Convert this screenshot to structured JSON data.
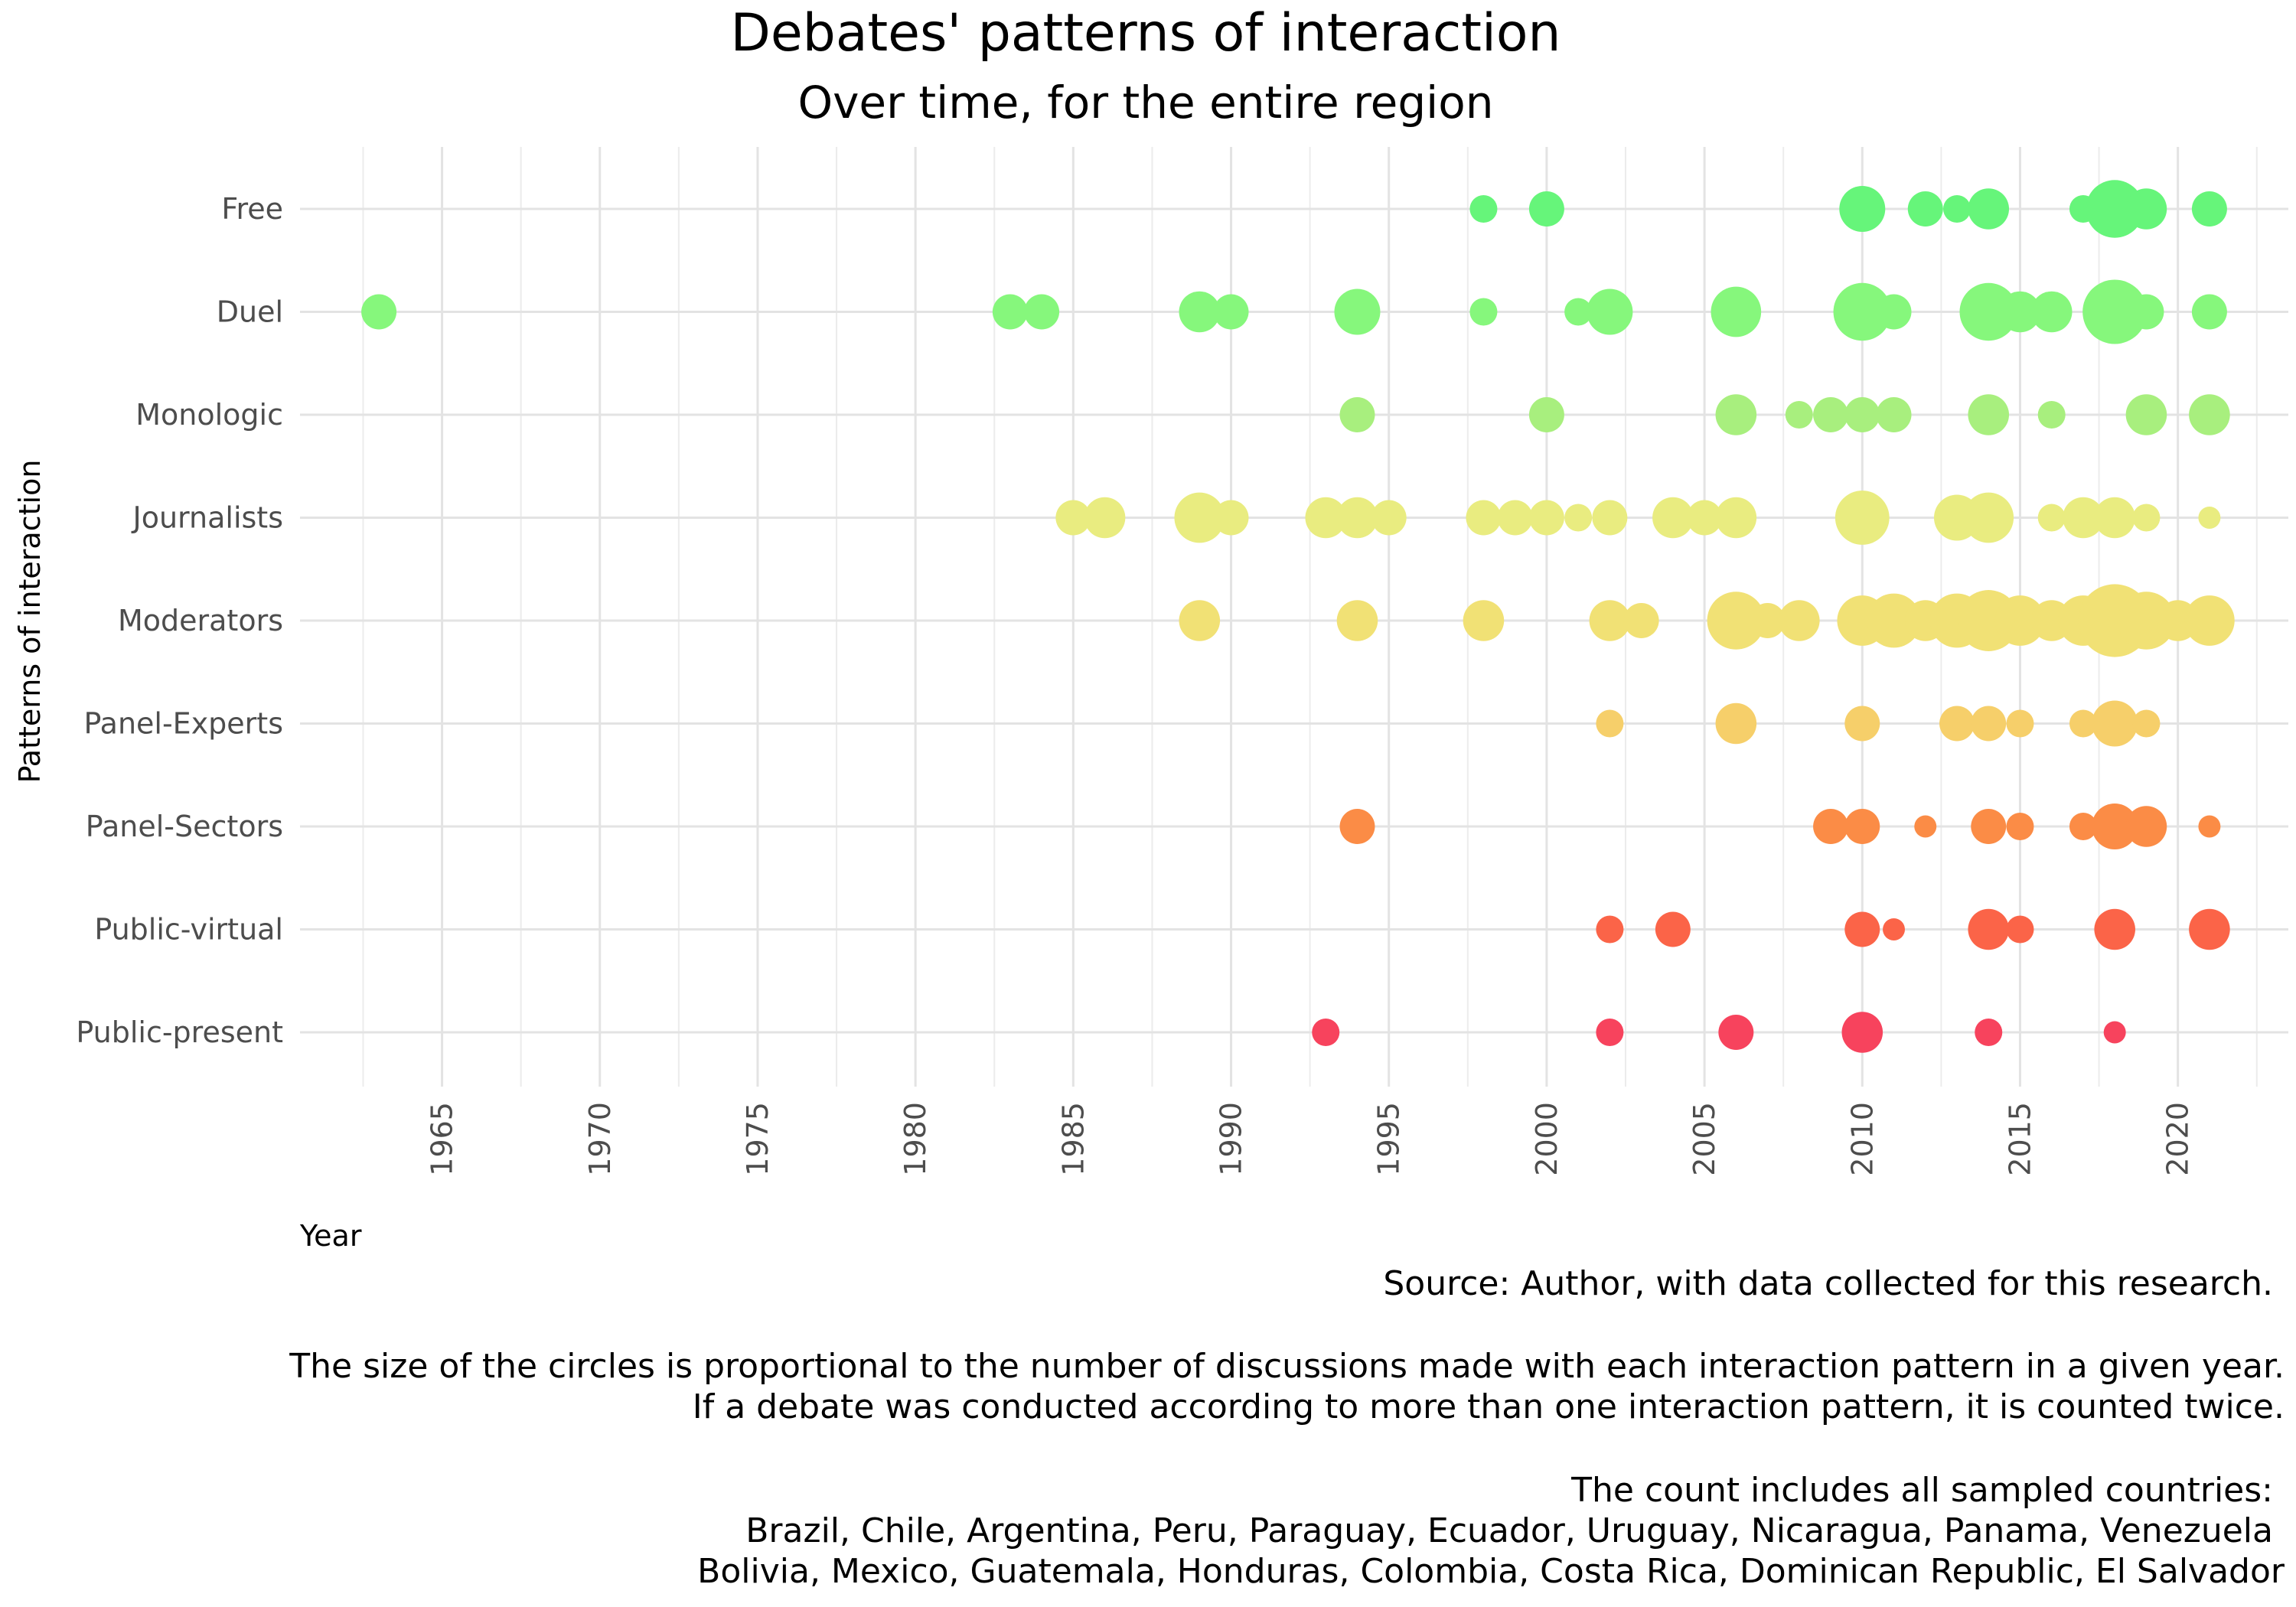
{
  "chart_data": {
    "type": "scatter",
    "title": "Debates' patterns of interaction",
    "subtitle": "Over time, for the entire region",
    "xlabel": "Year",
    "ylabel": "Patterns of interaction",
    "xlim": [
      1960.5,
      2023.5
    ],
    "x_ticks": [
      1965,
      1970,
      1975,
      1980,
      1985,
      1990,
      1995,
      2000,
      2005,
      2010,
      2015,
      2020
    ],
    "x_tick_labels": [
      "1965",
      "1970",
      "1975",
      "1980",
      "1985",
      "1990",
      "1995",
      "2000",
      "2005",
      "2010",
      "2015",
      "2020"
    ],
    "grid": true,
    "legend": "none",
    "categories": [
      "Free",
      "Duel",
      "Monologic",
      "Journalists",
      "Moderators",
      "Panel-Experts",
      "Panel-Sectors",
      "Public-virtual",
      "Public-present"
    ],
    "colors": {
      "Free": "#66f57a",
      "Duel": "#86f77c",
      "Monologic": "#a8ef7e",
      "Journalists": "#e9ec80",
      "Moderators": "#f1e175",
      "Panel-Experts": "#f6cf6a",
      "Panel-Sectors": "#fb8c46",
      "Public-virtual": "#fb6448",
      "Public-present": "#f7435d"
    },
    "series": [
      {
        "name": "Free",
        "points": [
          [
            1998,
            1
          ],
          [
            2000,
            2
          ],
          [
            2010,
            4
          ],
          [
            2012,
            2
          ],
          [
            2013,
            1
          ],
          [
            2014,
            3
          ],
          [
            2017,
            1
          ],
          [
            2018,
            7
          ],
          [
            2019,
            3
          ],
          [
            2021,
            2
          ]
        ]
      },
      {
        "name": "Duel",
        "points": [
          [
            1963,
            2
          ],
          [
            1983,
            2
          ],
          [
            1984,
            2
          ],
          [
            1989,
            3
          ],
          [
            1990,
            2
          ],
          [
            1994,
            4
          ],
          [
            1998,
            1
          ],
          [
            2001,
            1
          ],
          [
            2002,
            4
          ],
          [
            2006,
            5
          ],
          [
            2010,
            7
          ],
          [
            2011,
            2
          ],
          [
            2014,
            7
          ],
          [
            2015,
            3
          ],
          [
            2016,
            3
          ],
          [
            2018,
            9
          ],
          [
            2019,
            2
          ],
          [
            2021,
            2
          ]
        ]
      },
      {
        "name": "Monologic",
        "points": [
          [
            1994,
            2
          ],
          [
            2000,
            2
          ],
          [
            2006,
            3
          ],
          [
            2008,
            1
          ],
          [
            2009,
            2
          ],
          [
            2010,
            2
          ],
          [
            2011,
            2
          ],
          [
            2014,
            3
          ],
          [
            2016,
            1
          ],
          [
            2019,
            3
          ],
          [
            2021,
            3
          ]
        ]
      },
      {
        "name": "Journalists",
        "points": [
          [
            1985,
            2
          ],
          [
            1986,
            3
          ],
          [
            1989,
            5
          ],
          [
            1990,
            2
          ],
          [
            1993,
            3
          ],
          [
            1994,
            3
          ],
          [
            1995,
            2
          ],
          [
            1998,
            2
          ],
          [
            1999,
            2
          ],
          [
            2000,
            2
          ],
          [
            2001,
            1
          ],
          [
            2002,
            2
          ],
          [
            2004,
            3
          ],
          [
            2005,
            2
          ],
          [
            2006,
            3
          ],
          [
            2010,
            6
          ],
          [
            2013,
            4
          ],
          [
            2014,
            5
          ],
          [
            2016,
            1
          ],
          [
            2017,
            3
          ],
          [
            2018,
            3
          ],
          [
            2019,
            1
          ],
          [
            2021,
            0.5
          ]
        ]
      },
      {
        "name": "Moderators",
        "points": [
          [
            1989,
            3
          ],
          [
            1994,
            3
          ],
          [
            1998,
            3
          ],
          [
            2002,
            3
          ],
          [
            2003,
            2
          ],
          [
            2006,
            7
          ],
          [
            2007,
            2
          ],
          [
            2008,
            3
          ],
          [
            2010,
            5
          ],
          [
            2011,
            6
          ],
          [
            2012,
            3
          ],
          [
            2013,
            6
          ],
          [
            2014,
            8
          ],
          [
            2015,
            5
          ],
          [
            2016,
            3
          ],
          [
            2017,
            5
          ],
          [
            2018,
            12
          ],
          [
            2019,
            7
          ],
          [
            2020,
            3
          ],
          [
            2021,
            5
          ]
        ]
      },
      {
        "name": "Panel-Experts",
        "points": [
          [
            2002,
            1
          ],
          [
            2006,
            3
          ],
          [
            2010,
            2
          ],
          [
            2013,
            2
          ],
          [
            2014,
            2
          ],
          [
            2015,
            1
          ],
          [
            2017,
            1
          ],
          [
            2018,
            4
          ],
          [
            2019,
            1
          ]
        ]
      },
      {
        "name": "Panel-Sectors",
        "points": [
          [
            1994,
            2
          ],
          [
            2009,
            2
          ],
          [
            2010,
            2
          ],
          [
            2012,
            0.5
          ],
          [
            2014,
            2
          ],
          [
            2015,
            1
          ],
          [
            2017,
            1
          ],
          [
            2018,
            4
          ],
          [
            2019,
            3
          ],
          [
            2021,
            0.5
          ]
        ]
      },
      {
        "name": "Public-virtual",
        "points": [
          [
            2002,
            1
          ],
          [
            2004,
            2
          ],
          [
            2010,
            2
          ],
          [
            2011,
            0.5
          ],
          [
            2014,
            3
          ],
          [
            2015,
            1
          ],
          [
            2018,
            3
          ],
          [
            2021,
            3
          ]
        ]
      },
      {
        "name": "Public-present",
        "points": [
          [
            1993,
            1
          ],
          [
            2002,
            1
          ],
          [
            2006,
            2
          ],
          [
            2010,
            3
          ],
          [
            2014,
            1
          ],
          [
            2018,
            0.5
          ]
        ]
      }
    ]
  },
  "caption": {
    "source": "Source: Author, with data collected for this research.",
    "size_note_1": "The size of the circles is proportional to the number of discussions made with each interaction pattern in a given year.",
    "size_note_2": "If a debate was conducted according to more than one interaction pattern, it is counted twice.",
    "countries_intro": "The count includes all sampled countries:",
    "countries_1": "Brazil, Chile, Argentina, Peru, Paraguay, Ecuador, Uruguay, Nicaragua, Panama, Venezuela",
    "countries_2": "Bolivia, Mexico, Guatemala, Honduras, Colombia, Costa Rica, Dominican Republic, El Salvador"
  }
}
